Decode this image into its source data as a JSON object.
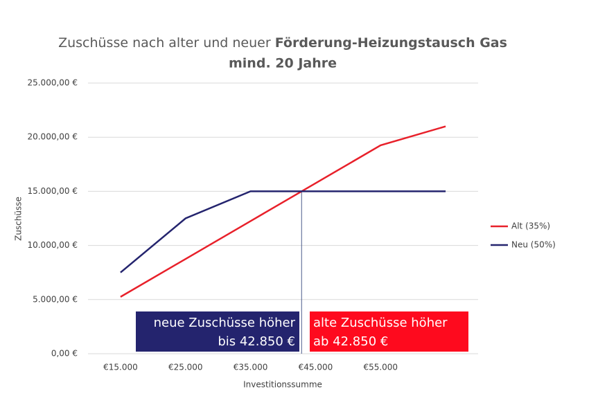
{
  "chart_data": {
    "type": "line",
    "title": [
      "Zuschüsse nach alter und neuer",
      "Förderung-Heizungstausch Gas",
      "mind. 20 Jahre"
    ],
    "x_label": "Investitionssumme",
    "y_label": "Zuschüsse",
    "x": [
      15000,
      25000,
      35000,
      45000,
      55000,
      65000
    ],
    "xlim": [
      10000,
      70000
    ],
    "xticks": [
      {
        "value": 15000,
        "label": "€15.000"
      },
      {
        "value": 25000,
        "label": "€25.000"
      },
      {
        "value": 35000,
        "label": "€35.000"
      },
      {
        "value": 45000,
        "label": "€45.000"
      },
      {
        "value": 55000,
        "label": "€55.000"
      }
    ],
    "ylim": [
      0,
      25000
    ],
    "yticks": [
      {
        "value": 0,
        "label": "0,00 €"
      },
      {
        "value": 5000,
        "label": "5.000,00 €"
      },
      {
        "value": 10000,
        "label": "10.000,00 €"
      },
      {
        "value": 15000,
        "label": "15.000,00 €"
      },
      {
        "value": 20000,
        "label": "20.000,00 €"
      },
      {
        "value": 25000,
        "label": "25.000,00 €"
      }
    ],
    "grid": true,
    "legend": "right",
    "series": [
      {
        "name": "Alt (35%)",
        "color": "#e8202a",
        "values": [
          5250,
          8750,
          12250,
          15750,
          19250,
          21000
        ]
      },
      {
        "name": "Neu (50%)",
        "color": "#24246e",
        "values": [
          7500,
          12500,
          15000,
          15000,
          15000,
          15000
        ]
      }
    ],
    "reference_line": {
      "x": 42850,
      "color": "#4a5a8a"
    },
    "annotations": [
      {
        "lines": [
          "neue Zuschüsse höher",
          "bis 42.850 €"
        ],
        "color": "#24246e"
      },
      {
        "lines": [
          "alte Zuschüsse höher",
          "ab 42.850 €"
        ],
        "color": "#fe0a1e"
      }
    ]
  }
}
